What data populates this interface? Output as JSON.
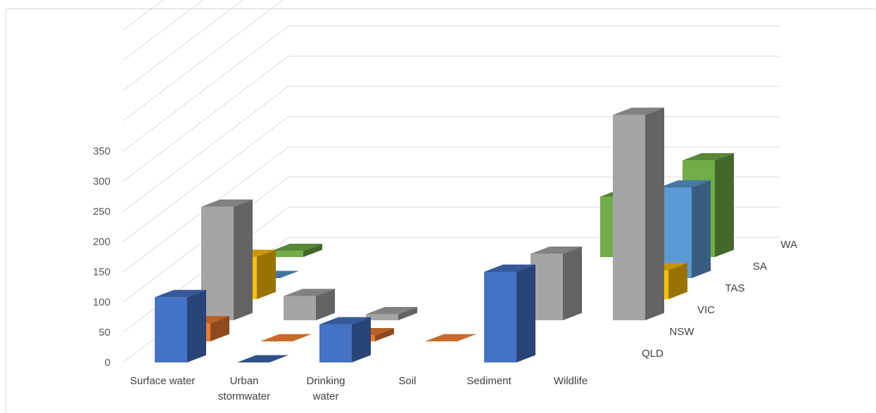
{
  "chart_data": {
    "type": "bar",
    "subtype": "3d-column",
    "categories": [
      "Surface water",
      "Urban stormwater",
      "Drinking water",
      "Soil",
      "Sediment",
      "Wildlife"
    ],
    "category_display_lines": [
      [
        "Surface water"
      ],
      [
        "Urban",
        "stormwater"
      ],
      [
        "Drinking",
        "water"
      ],
      [
        "Soil"
      ],
      [
        "Sediment"
      ],
      [
        "Wildlife"
      ]
    ],
    "series": [
      {
        "name": "QLD",
        "values": [
          108,
          0,
          63,
          0,
          150,
          0
        ],
        "color": "#4472C4"
      },
      {
        "name": "NSW",
        "values": [
          30,
          0,
          10,
          0,
          0,
          0
        ],
        "color": "#ED7D31"
      },
      {
        "name": "VIC",
        "values": [
          188,
          40,
          10,
          0,
          110,
          340
        ],
        "color": "#A5A5A5"
      },
      {
        "name": "TAS",
        "values": [
          70,
          0,
          0,
          0,
          0,
          48
        ],
        "color": "#FFC000"
      },
      {
        "name": "SA",
        "values": [
          0,
          0,
          0,
          0,
          0,
          150
        ],
        "color": "#5B9BD5"
      },
      {
        "name": "WA",
        "values": [
          10,
          0,
          0,
          0,
          100,
          160
        ],
        "color": "#70AD47"
      }
    ],
    "ylim": [
      0,
      350
    ],
    "yticks": [
      "0",
      "50",
      "100",
      "150",
      "200",
      "250",
      "300",
      "350"
    ],
    "grid": true,
    "legend": "none"
  }
}
